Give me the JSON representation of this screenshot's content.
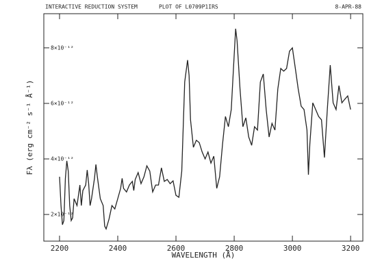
{
  "chart_data": {
    "type": "line",
    "header": [
      "INTERACTIVE REDUCTION SYSTEM",
      "PLOT OF L0709P1IRS",
      "8-APR-88"
    ],
    "x_label": "WAVELENGTH (Å)",
    "y_label": "Fλ (erg cm⁻² s⁻¹ Å⁻¹)",
    "xlim": [
      2146,
      3242
    ],
    "ylim": [
      1.04e-12,
      9.23e-12
    ],
    "xticks": [
      2200,
      2400,
      2600,
      2800,
      3000,
      3200
    ],
    "yticks": [
      {
        "value": 2e-12,
        "label": "2×10⁻¹²"
      },
      {
        "value": 4e-12,
        "label": "4×10⁻¹²"
      },
      {
        "value": 6e-12,
        "label": "6×10⁻¹²"
      },
      {
        "value": 8e-12,
        "label": "8×10⁻¹²"
      }
    ],
    "series": [
      {
        "color": "#222222",
        "x": [
          2200,
          2205,
          2210,
          2215,
          2220,
          2225,
          2230,
          2235,
          2240,
          2245,
          2250,
          2260,
          2270,
          2275,
          2280,
          2290,
          2295,
          2300,
          2305,
          2310,
          2320,
          2325,
          2330,
          2340,
          2350,
          2355,
          2360,
          2370,
          2380,
          2390,
          2400,
          2410,
          2415,
          2420,
          2430,
          2440,
          2450,
          2455,
          2460,
          2470,
          2480,
          2490,
          2500,
          2510,
          2520,
          2530,
          2540,
          2550,
          2560,
          2570,
          2580,
          2590,
          2600,
          2610,
          2620,
          2630,
          2640,
          2645,
          2650,
          2660,
          2670,
          2680,
          2690,
          2700,
          2710,
          2720,
          2730,
          2740,
          2750,
          2760,
          2770,
          2780,
          2790,
          2800,
          2805,
          2810,
          2820,
          2830,
          2840,
          2850,
          2860,
          2870,
          2880,
          2890,
          2900,
          2910,
          2920,
          2930,
          2940,
          2950,
          2960,
          2970,
          2980,
          2990,
          3000,
          3010,
          3020,
          3030,
          3040,
          3050,
          3055,
          3060,
          3070,
          3080,
          3090,
          3100,
          3110,
          3120,
          3130,
          3140,
          3150,
          3160,
          3170,
          3180,
          3190,
          3200
        ],
        "values": [
          3.36e-12,
          2.32e-12,
          1.63e-12,
          1.78e-12,
          3.3e-12,
          3.93e-12,
          3.56e-12,
          2.32e-12,
          1.78e-12,
          1.88e-12,
          2.57e-12,
          2.32e-12,
          3.06e-12,
          2.32e-12,
          2.86e-12,
          3.06e-12,
          3.6e-12,
          3.11e-12,
          2.32e-12,
          2.57e-12,
          3.3e-12,
          3.8e-12,
          3.36e-12,
          2.57e-12,
          2.32e-12,
          1.58e-12,
          1.48e-12,
          1.83e-12,
          2.32e-12,
          2.2e-12,
          2.57e-12,
          2.94e-12,
          3.3e-12,
          2.94e-12,
          2.81e-12,
          3.06e-12,
          3.19e-12,
          2.86e-12,
          3.26e-12,
          3.51e-12,
          3.11e-12,
          3.36e-12,
          3.75e-12,
          3.56e-12,
          2.81e-12,
          3.06e-12,
          3.06e-12,
          3.68e-12,
          3.19e-12,
          3.26e-12,
          3.11e-12,
          3.21e-12,
          2.69e-12,
          2.62e-12,
          3.56e-12,
          6.77e-12,
          7.56e-12,
          7.01e-12,
          5.41e-12,
          4.42e-12,
          4.67e-12,
          4.59e-12,
          4.25e-12,
          4e-12,
          4.25e-12,
          3.85e-12,
          4.1e-12,
          2.94e-12,
          3.36e-12,
          4.54e-12,
          5.53e-12,
          5.16e-12,
          5.78e-12,
          7.75e-12,
          8.69e-12,
          8.25e-12,
          6.52e-12,
          5.16e-12,
          5.48e-12,
          4.79e-12,
          4.49e-12,
          5.16e-12,
          5.04e-12,
          6.77e-12,
          7.06e-12,
          5.78e-12,
          4.79e-12,
          5.28e-12,
          5.04e-12,
          6.52e-12,
          7.26e-12,
          7.16e-12,
          7.26e-12,
          7.88e-12,
          8e-12,
          7.26e-12,
          6.52e-12,
          5.9e-12,
          5.78e-12,
          5.04e-12,
          3.43e-12,
          4.54e-12,
          6.02e-12,
          5.78e-12,
          5.53e-12,
          5.41e-12,
          4.05e-12,
          5.78e-12,
          7.38e-12,
          6.02e-12,
          5.78e-12,
          6.64e-12,
          6.02e-12,
          6.15e-12,
          6.27e-12,
          5.78e-12
        ]
      }
    ]
  }
}
